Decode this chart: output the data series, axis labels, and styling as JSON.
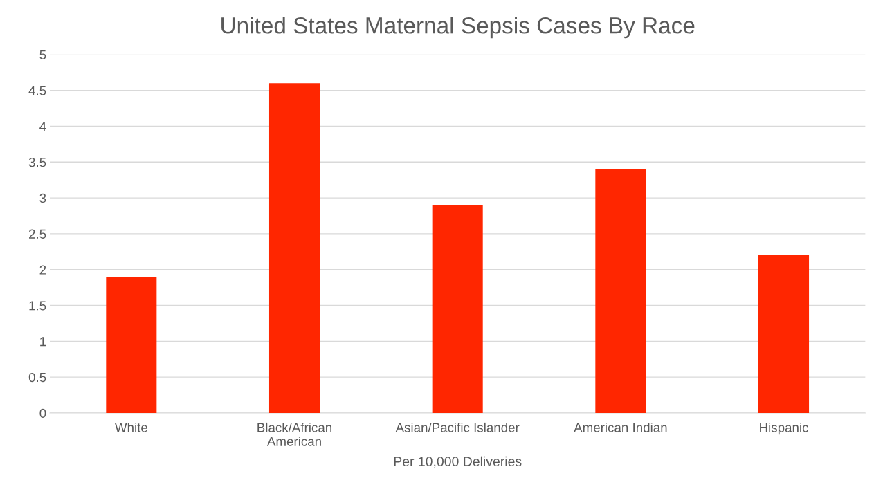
{
  "chart_data": {
    "type": "bar",
    "title": "United States Maternal Sepsis Cases By Race",
    "xlabel": "Per 10,000 Deliveries",
    "categories": [
      "White",
      "Black/African\nAmerican",
      "Asian/Pacific Islander",
      "American Indian",
      "Hispanic"
    ],
    "values": [
      1.9,
      4.6,
      2.9,
      3.4,
      2.2
    ],
    "color": "#ff2600",
    "ylim": [
      0,
      5
    ],
    "yticks": [
      0,
      0.5,
      1,
      1.5,
      2,
      2.5,
      3,
      3.5,
      4,
      4.5,
      5
    ],
    "grid": "y",
    "legend": false
  }
}
